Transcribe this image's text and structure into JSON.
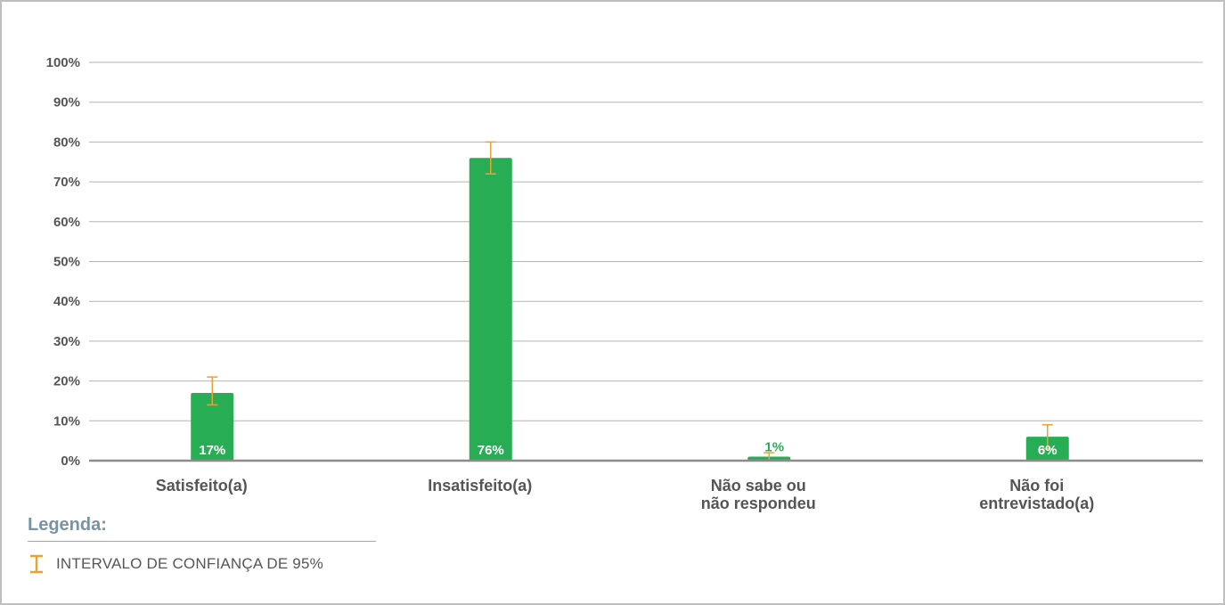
{
  "chart_data": {
    "type": "bar",
    "categories": [
      "Satisfeito(a)",
      "Insatisfeito(a)",
      "Não sabe ou não respondeu",
      "Não foi entrevistado(a)"
    ],
    "category_lines": [
      [
        "Satisfeito(a)"
      ],
      [
        "Insatisfeito(a)"
      ],
      [
        "Não sabe ou",
        "não respondeu"
      ],
      [
        "Não foi",
        "entrevistado(a)"
      ]
    ],
    "values": [
      17,
      76,
      1,
      6
    ],
    "value_labels": [
      "17%",
      "76%",
      "1%",
      "6%"
    ],
    "error_bars": [
      [
        14,
        21
      ],
      [
        72,
        80
      ],
      [
        0,
        2
      ],
      [
        3,
        9
      ]
    ],
    "ylim": [
      0,
      100
    ],
    "yticks": [
      0,
      10,
      20,
      30,
      40,
      50,
      60,
      70,
      80,
      90,
      100
    ],
    "ytick_labels": [
      "0%",
      "10%",
      "20%",
      "30%",
      "40%",
      "50%",
      "60%",
      "70%",
      "80%",
      "90%",
      "100%"
    ],
    "grid": true,
    "colors": {
      "bar": "#27ae54",
      "error": "#f0a030",
      "grid": "#b3b3b3",
      "axis": "#8c8c8c",
      "text": "#555555"
    }
  },
  "legend": {
    "title": "Legenda:",
    "items": [
      {
        "icon": "error-bar-icon",
        "label": "INTERVALO DE CONFIANÇA DE 95%"
      }
    ]
  }
}
